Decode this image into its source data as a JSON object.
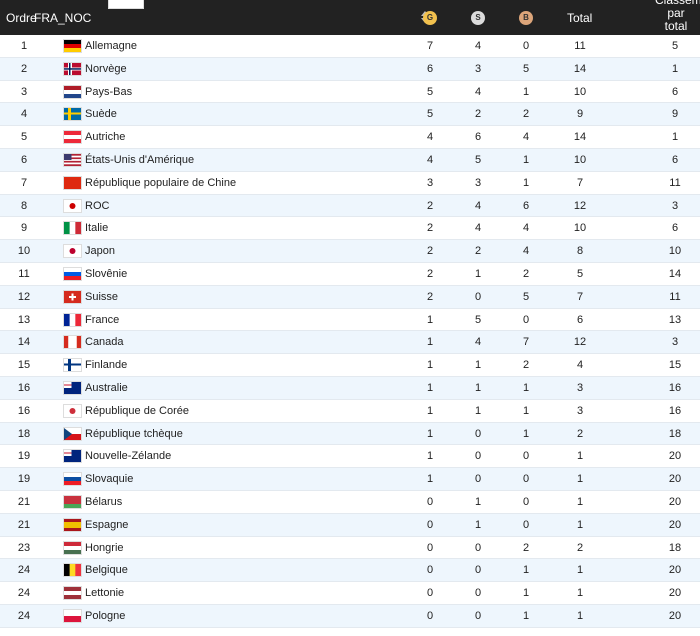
{
  "table": {
    "columns": [
      "Ordre",
      "FRA_NOC",
      "G",
      "S",
      "B",
      "Total",
      "Classement par total"
    ],
    "rows": [
      [
        1,
        "Allemagne",
        7,
        4,
        0,
        11,
        5
      ],
      [
        2,
        "Norvège",
        6,
        3,
        5,
        14,
        1
      ],
      [
        3,
        "Pays-Bas",
        5,
        4,
        1,
        10,
        6
      ],
      [
        4,
        "Suède",
        5,
        2,
        2,
        9,
        9
      ],
      [
        5,
        "Autriche",
        4,
        6,
        4,
        14,
        1
      ],
      [
        6,
        "États-Unis d'Amérique",
        4,
        5,
        1,
        10,
        6
      ],
      [
        7,
        "République populaire de Chine",
        3,
        3,
        1,
        7,
        11
      ],
      [
        8,
        "ROC",
        2,
        4,
        6,
        12,
        3
      ],
      [
        9,
        "Italie",
        2,
        4,
        4,
        10,
        6
      ],
      [
        10,
        "Japon",
        2,
        2,
        4,
        8,
        10
      ],
      [
        11,
        "Slovênie",
        2,
        1,
        2,
        5,
        14
      ],
      [
        12,
        "Suisse",
        2,
        0,
        5,
        7,
        11
      ],
      [
        13,
        "France",
        1,
        5,
        0,
        6,
        13
      ],
      [
        14,
        "Canada",
        1,
        4,
        7,
        12,
        3
      ],
      [
        15,
        "Finlande",
        1,
        1,
        2,
        4,
        15
      ],
      [
        16,
        "Australie",
        1,
        1,
        1,
        3,
        16
      ],
      [
        16,
        "République de Corée",
        1,
        1,
        1,
        3,
        16
      ],
      [
        18,
        "République tchèque",
        1,
        0,
        1,
        2,
        18
      ],
      [
        19,
        "Nouvelle-Zélande",
        1,
        0,
        0,
        1,
        20
      ],
      [
        19,
        "Slovaquie",
        1,
        0,
        0,
        1,
        20
      ],
      [
        21,
        "Bélarus",
        0,
        1,
        0,
        1,
        20
      ],
      [
        21,
        "Espagne",
        0,
        1,
        0,
        1,
        20
      ],
      [
        23,
        "Hongrie",
        0,
        0,
        2,
        2,
        18
      ],
      [
        24,
        "Belgique",
        0,
        0,
        1,
        1,
        20
      ],
      [
        24,
        "Lettonie",
        0,
        0,
        1,
        1,
        20
      ],
      [
        24,
        "Pologne",
        0,
        0,
        1,
        1,
        20
      ]
    ]
  }
}
